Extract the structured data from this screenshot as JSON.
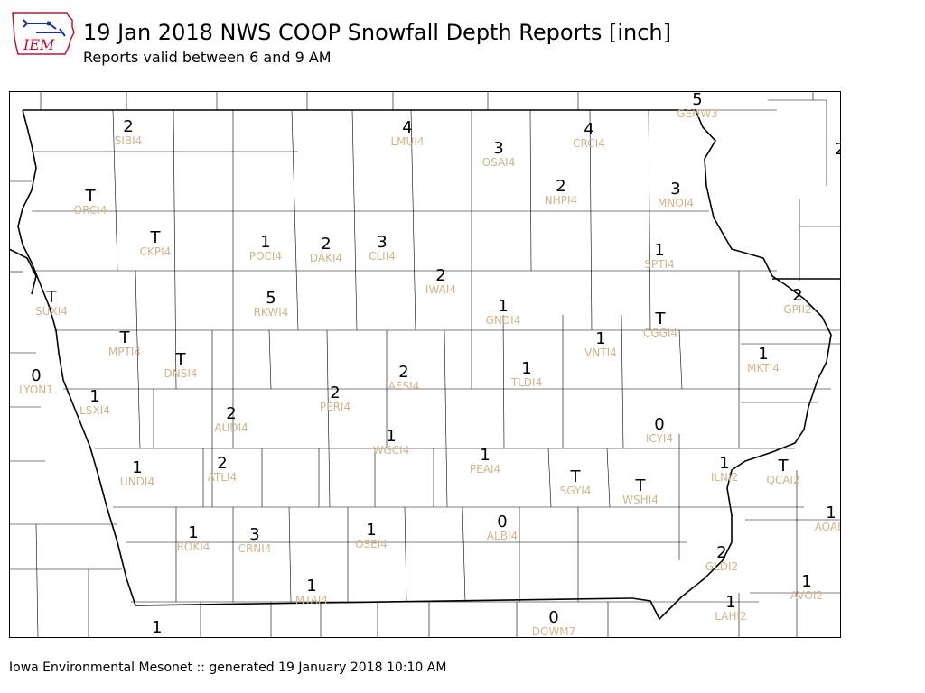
{
  "header": {
    "logo_text": "IEM",
    "title": "19 Jan 2018 NWS COOP Snowfall Depth Reports [inch]",
    "subtitle": "Reports valid between 6 and 9 AM"
  },
  "footer": {
    "text": "Iowa Environmental Mesonet :: generated 19 January 2018 10:10 AM"
  },
  "colors": {
    "value": "#000000",
    "station": "#d2b48c",
    "county_line": "#000000",
    "logo_red": "#c8102e",
    "logo_blue": "#1a2ea8"
  },
  "stations": [
    {
      "id": "SIBI4",
      "value": "2"
    },
    {
      "id": "LMUI4",
      "value": "4"
    },
    {
      "id": "OSAI4",
      "value": "3"
    },
    {
      "id": "CRCI4",
      "value": "4"
    },
    {
      "id": "GEHW3",
      "value": "5"
    },
    {
      "id": "ORCI4",
      "value": "T"
    },
    {
      "id": "NHPI4",
      "value": "2"
    },
    {
      "id": "MNOI4",
      "value": "3"
    },
    {
      "id": "CKPI4",
      "value": "T"
    },
    {
      "id": "POCI4",
      "value": "1"
    },
    {
      "id": "DAKI4",
      "value": "2"
    },
    {
      "id": "CLII4",
      "value": "3"
    },
    {
      "id": "SPTI4",
      "value": "1"
    },
    {
      "id": "IWAI4",
      "value": "2"
    },
    {
      "id": "SUXI4",
      "value": "T"
    },
    {
      "id": "RKWI4",
      "value": "5"
    },
    {
      "id": "GNDI4",
      "value": "1"
    },
    {
      "id": "GPII2",
      "value": "2"
    },
    {
      "id": "CGGI4",
      "value": "T"
    },
    {
      "id": "MPTI4",
      "value": "T"
    },
    {
      "id": "VNTI4",
      "value": "1"
    },
    {
      "id": "DNSI4",
      "value": "T"
    },
    {
      "id": "MKTI4",
      "value": "1"
    },
    {
      "id": "LYON1",
      "value": "0"
    },
    {
      "id": "AESI4",
      "value": "2"
    },
    {
      "id": "TLDI4",
      "value": "1"
    },
    {
      "id": "LSXI4",
      "value": "1"
    },
    {
      "id": "PERI4",
      "value": "2"
    },
    {
      "id": "AUDI4",
      "value": "2"
    },
    {
      "id": "ICYI4",
      "value": "0"
    },
    {
      "id": "WGCI4",
      "value": "1"
    },
    {
      "id": "PEAI4",
      "value": "1"
    },
    {
      "id": "UNDI4",
      "value": "1"
    },
    {
      "id": "ATLI4",
      "value": "2"
    },
    {
      "id": "ILNI2",
      "value": "1"
    },
    {
      "id": "QCAI2",
      "value": "T"
    },
    {
      "id": "SGYI4",
      "value": "T"
    },
    {
      "id": "WSHI4",
      "value": "T"
    },
    {
      "id": "AOAI2",
      "value": "1"
    },
    {
      "id": "ALBI4",
      "value": "0"
    },
    {
      "id": "OSEI4",
      "value": "1"
    },
    {
      "id": "ROKI4",
      "value": "1"
    },
    {
      "id": "CRNI4",
      "value": "3"
    },
    {
      "id": "GLDI2",
      "value": "2"
    },
    {
      "id": "AVOI2",
      "value": "1"
    },
    {
      "id": "MTAI4",
      "value": "1"
    },
    {
      "id": "LAHI2",
      "value": "1"
    },
    {
      "id": "DOWM7",
      "value": "0"
    }
  ],
  "edge_values": [
    "2",
    "1"
  ]
}
